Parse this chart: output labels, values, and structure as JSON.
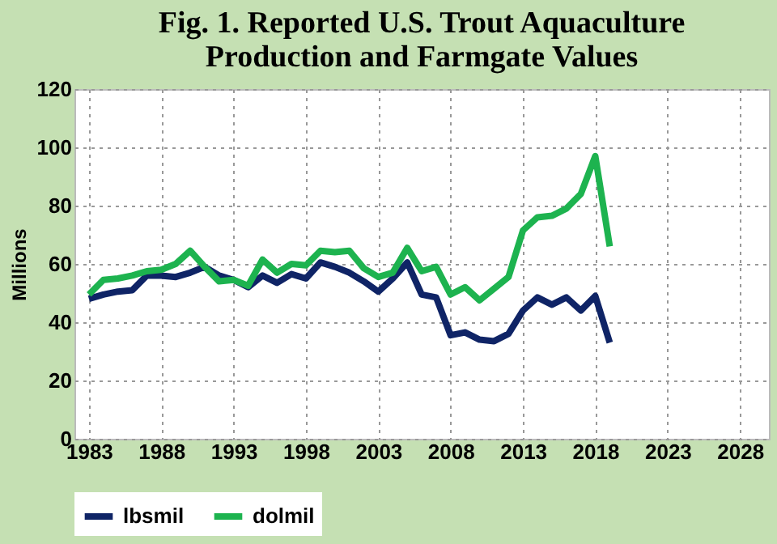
{
  "chart_data": {
    "type": "line",
    "title": "Fig. 1. Reported U.S. Trout Aquaculture Production and Farmgate Values",
    "ylabel": "Millions",
    "x": [
      1983,
      1984,
      1985,
      1986,
      1987,
      1988,
      1989,
      1990,
      1991,
      1992,
      1993,
      1994,
      1995,
      1996,
      1997,
      1998,
      1999,
      2000,
      2001,
      2002,
      2003,
      2004,
      2005,
      2006,
      2007,
      2008,
      2009,
      2010,
      2011,
      2012,
      2013,
      2014,
      2015,
      2016,
      2017,
      2018,
      2019
    ],
    "series": [
      {
        "name": "lbsmil",
        "color": "#0f2466",
        "values": [
          48,
          49.5,
          50.5,
          51,
          56,
          56,
          55.5,
          57,
          59,
          56,
          54.5,
          52,
          56,
          53.5,
          56.5,
          55,
          60.5,
          59,
          57,
          54,
          50.5,
          55,
          60.5,
          49.5,
          48.5,
          35.5,
          36.5,
          34,
          33.5,
          36,
          44,
          48.5,
          46,
          48.5,
          44,
          49,
          33
        ]
      },
      {
        "name": "dolmil",
        "color": "#1db34f",
        "values": [
          49.5,
          54.5,
          55,
          56,
          57.5,
          58,
          60,
          64.5,
          59,
          54,
          54.5,
          52.5,
          61.5,
          57,
          60,
          59.5,
          64.5,
          64,
          64.5,
          58.5,
          55.5,
          57,
          65.5,
          57.5,
          59,
          49.5,
          52,
          47.5,
          51.5,
          55.5,
          71.5,
          76,
          76.5,
          79,
          84,
          97,
          66
        ]
      }
    ],
    "xlim": [
      1982,
      2030
    ],
    "xticks": [
      1983,
      1988,
      1993,
      1998,
      2003,
      2008,
      2013,
      2018,
      2023,
      2028
    ],
    "ylim": [
      0,
      120
    ],
    "yticks": [
      0,
      20,
      40,
      60,
      80,
      100,
      120
    ],
    "grid": true,
    "legend": "bottom",
    "line_style": "solid",
    "marker": "none"
  }
}
